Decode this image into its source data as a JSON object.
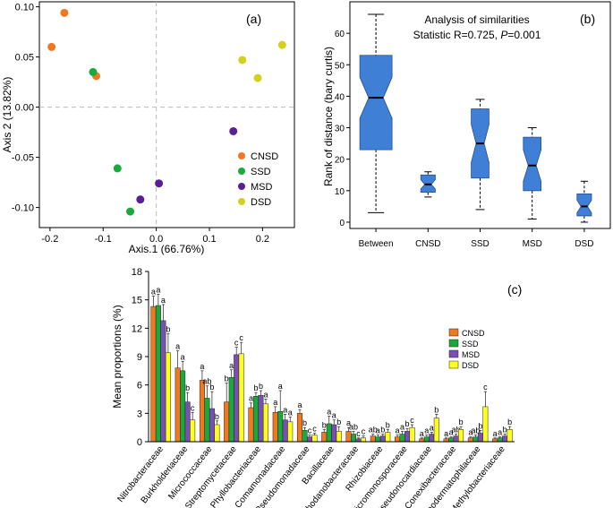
{
  "chart_data": [
    {
      "id": "a",
      "type": "scatter",
      "panel_label": "(a)",
      "xlabel": "Axis.1 (66.76%)",
      "ylabel": "Axis 2 (13.82%)",
      "xlim": [
        -0.22,
        0.26
      ],
      "ylim": [
        -0.12,
        0.105
      ],
      "xticks": [
        -0.2,
        -0.1,
        0.0,
        0.1,
        0.2
      ],
      "xtick_labels": [
        "-0.2",
        "-0.1",
        "0.0",
        "0.1",
        "0.2"
      ],
      "yticks": [
        -0.1,
        -0.05,
        0.0,
        0.05,
        0.1
      ],
      "ytick_labels": [
        "-0.10",
        "-0.05",
        "0.00",
        "0.05",
        "0.10"
      ],
      "reference_lines": {
        "x": 0,
        "y": 0
      },
      "legend_position": "bottom-right",
      "series": [
        {
          "name": "CNSD",
          "color": "#f07820",
          "points": [
            [
              -0.173,
              0.094
            ],
            [
              -0.197,
              0.06
            ],
            [
              -0.113,
              0.031
            ]
          ]
        },
        {
          "name": "SSD",
          "color": "#1aaa3c",
          "points": [
            [
              -0.119,
              0.035
            ],
            [
              -0.073,
              -0.061
            ],
            [
              -0.049,
              -0.104
            ]
          ]
        },
        {
          "name": "MSD",
          "color": "#5a1f96",
          "points": [
            [
              0.145,
              -0.024
            ],
            [
              0.005,
              -0.076
            ],
            [
              -0.03,
              -0.092
            ]
          ]
        },
        {
          "name": "DSD",
          "color": "#d2d21e",
          "points": [
            [
              0.237,
              0.062
            ],
            [
              0.162,
              0.047
            ],
            [
              0.191,
              0.029
            ]
          ]
        }
      ]
    },
    {
      "id": "b",
      "type": "boxplot",
      "panel_label": "(b)",
      "title": "Analysis of similarities",
      "subtitle_prefix": "Statistic R=0.725, ",
      "subtitle_p_label": "P",
      "subtitle_p_value": "=0.001",
      "ylabel": "Rank of distance (bary curtis)",
      "ylim": [
        -2,
        70
      ],
      "yticks": [
        0,
        10,
        20,
        30,
        40,
        50,
        60
      ],
      "ytick_labels": [
        "0",
        "10",
        "20",
        "30",
        "40",
        "50",
        "60"
      ],
      "box_color": "#3f7fd6",
      "categories": [
        "Between",
        "CNSD",
        "SSD",
        "MSD",
        "DSD"
      ],
      "boxes": [
        {
          "name": "Between",
          "min": 3,
          "q1": 23,
          "median": 39.5,
          "q3": 53,
          "max": 66,
          "notch_low": 33,
          "notch_high": 46,
          "width": 1.0
        },
        {
          "name": "CNSD",
          "min": 8,
          "q1": 9.5,
          "median": 12,
          "q3": 15,
          "max": 16,
          "notch_low": 10.5,
          "notch_high": 13.5,
          "width": 0.45
        },
        {
          "name": "SSD",
          "min": 4,
          "q1": 14,
          "median": 25,
          "q3": 36,
          "max": 39,
          "notch_low": 19,
          "notch_high": 31,
          "width": 0.55
        },
        {
          "name": "MSD",
          "min": 1,
          "q1": 10,
          "median": 18,
          "q3": 27,
          "max": 30,
          "notch_low": 13,
          "notch_high": 23,
          "width": 0.55
        },
        {
          "name": "DSD",
          "min": 0,
          "q1": 2,
          "median": 5,
          "q3": 9,
          "max": 13,
          "notch_low": 3,
          "notch_high": 7,
          "width": 0.45
        }
      ]
    },
    {
      "id": "c",
      "type": "bar",
      "panel_label": "(c)",
      "ylabel": "Mean proportions (%)",
      "ylim": [
        0,
        18
      ],
      "yticks": [
        0,
        3,
        6,
        9,
        12,
        15,
        18
      ],
      "ytick_labels": [
        "0",
        "3",
        "6",
        "9",
        "12",
        "15",
        "18"
      ],
      "legend_position": "right",
      "categories": [
        "Nitrobacteraceae",
        "Burkholderiaceae",
        "Micrococcaceae",
        "Streptomycetaceae",
        "Phyllobacteriaceae",
        "Comamonadaceae",
        "Pseudomonadaceae",
        "Bacillaceae",
        "Rhodanobacteraceae",
        "Rhizobiaceae",
        "Micromonosporaceae",
        "Pseudonocardiaceae",
        "Conexibacteraceae",
        "Geodermatophilaceae",
        "Methylobacteriaceae"
      ],
      "series": [
        {
          "name": "CNSD",
          "color": "#f07820",
          "values": [
            14.3,
            7.8,
            6.5,
            4.2,
            3.6,
            3.1,
            3.0,
            1.0,
            1.1,
            0.6,
            0.5,
            0.3,
            0.3,
            0.4,
            0.3
          ],
          "errors": [
            1.1,
            1.8,
            1.0,
            2.0,
            0.5,
            0.6,
            0.4,
            0.3,
            0.4,
            0.2,
            0.2,
            0.1,
            0.1,
            0.1,
            0.1
          ],
          "letters": [
            "a",
            "a",
            "a",
            "b",
            "a",
            "a",
            "a",
            "b",
            "a",
            "ab",
            "a",
            "a",
            "a",
            "a",
            "a"
          ]
        },
        {
          "name": "SSD",
          "color": "#1aaa3c",
          "values": [
            14.4,
            7.5,
            4.6,
            6.8,
            4.8,
            3.2,
            1.2,
            1.9,
            0.8,
            0.5,
            0.8,
            0.5,
            0.4,
            0.5,
            0.4
          ],
          "errors": [
            1.2,
            1.0,
            1.3,
            0.8,
            0.4,
            2.2,
            0.3,
            0.8,
            0.3,
            0.2,
            0.3,
            0.2,
            0.1,
            0.2,
            0.1
          ],
          "letters": [
            "a",
            "a",
            "ab",
            "a",
            "b",
            "a",
            "b",
            "a",
            "ab",
            "a",
            "a",
            "a",
            "a",
            "ab",
            "a"
          ]
        },
        {
          "name": "MSD",
          "color": "#7a4fb4",
          "values": [
            12.8,
            4.2,
            3.5,
            9.2,
            4.9,
            2.3,
            0.5,
            1.8,
            0.3,
            0.6,
            1.1,
            0.8,
            0.6,
            0.9,
            0.6
          ],
          "errors": [
            1.7,
            1.0,
            1.8,
            0.8,
            0.5,
            0.6,
            0.2,
            0.5,
            0.1,
            0.2,
            0.3,
            0.2,
            0.2,
            0.3,
            0.2
          ],
          "letters": [
            "a",
            "b",
            "b",
            "c",
            "b",
            "a",
            "c",
            "a",
            "c",
            "b",
            "b",
            "a",
            "ab",
            "b",
            "b"
          ]
        },
        {
          "name": "DSD",
          "color": "#ffff1e",
          "values": [
            9.4,
            2.3,
            1.8,
            9.3,
            4.0,
            2.1,
            0.7,
            1.1,
            0.4,
            1.0,
            1.5,
            2.5,
            1.3,
            3.7,
            1.3
          ],
          "errors": [
            2.0,
            0.8,
            0.4,
            1.2,
            0.5,
            0.5,
            0.2,
            0.5,
            0.2,
            0.3,
            0.3,
            0.4,
            0.3,
            1.6,
            0.3
          ],
          "letters": [
            "b",
            "c",
            "b",
            "c",
            "a",
            "a",
            "c",
            "b",
            "c",
            "b",
            "c",
            "b",
            "b",
            "c",
            "b"
          ]
        }
      ]
    }
  ]
}
